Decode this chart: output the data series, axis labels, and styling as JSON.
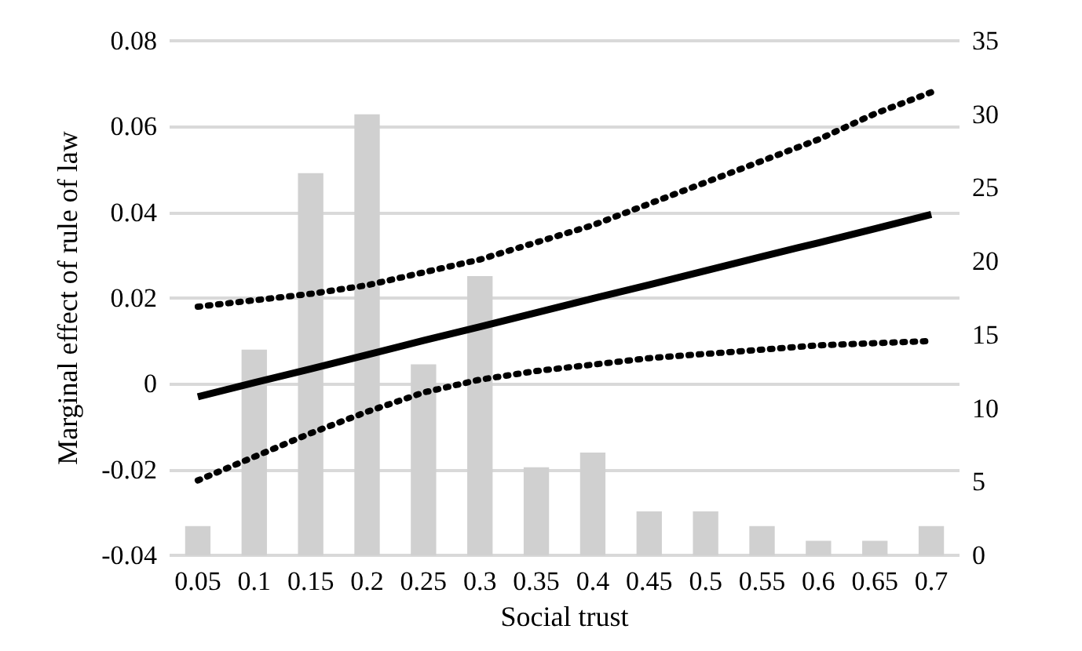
{
  "chart_data": {
    "type": "bar",
    "xlabel": "Social trust",
    "ylabel": "Marginal effect of rule of law",
    "categories": [
      "0.05",
      "0.1",
      "0.15",
      "0.2",
      "0.25",
      "0.3",
      "0.35",
      "0.4",
      "0.45",
      "0.5",
      "0.55",
      "0.6",
      "0.65",
      "0.7"
    ],
    "series": [
      {
        "axis": "y2",
        "color": "#d0d0d0",
        "values": [
          2,
          14,
          26,
          30,
          13,
          19,
          6,
          7,
          3,
          3,
          2,
          1,
          1,
          2
        ]
      },
      {
        "type": "line",
        "color": "#000000",
        "line_style": "solid",
        "values": [
          -0.003,
          0.0003,
          0.0035,
          0.0068,
          0.0101,
          0.0133,
          0.0166,
          0.0199,
          0.0231,
          0.0264,
          0.0297,
          0.0329,
          0.0362,
          0.0395
        ]
      },
      {
        "type": "line",
        "color": "#000000",
        "line_style": "dotted",
        "values": [
          0.018,
          0.0195,
          0.021,
          0.023,
          0.026,
          0.029,
          0.033,
          0.037,
          0.042,
          0.047,
          0.052,
          0.057,
          0.063,
          0.068
        ]
      },
      {
        "type": "line",
        "color": "#000000",
        "line_style": "dotted",
        "values": [
          -0.0225,
          -0.017,
          -0.0115,
          -0.0065,
          -0.002,
          0.001,
          0.003,
          0.0045,
          0.006,
          0.007,
          0.008,
          0.009,
          0.0095,
          0.01
        ]
      }
    ],
    "ylim": [
      -0.04,
      0.08
    ],
    "yticks": [
      -0.04,
      -0.02,
      0,
      0.02,
      0.04,
      0.06,
      0.08
    ],
    "y2lim": [
      0,
      35
    ],
    "y2ticks": [
      0,
      5,
      10,
      15,
      20,
      25,
      30,
      35
    ],
    "grid": "y",
    "marker": "none"
  }
}
